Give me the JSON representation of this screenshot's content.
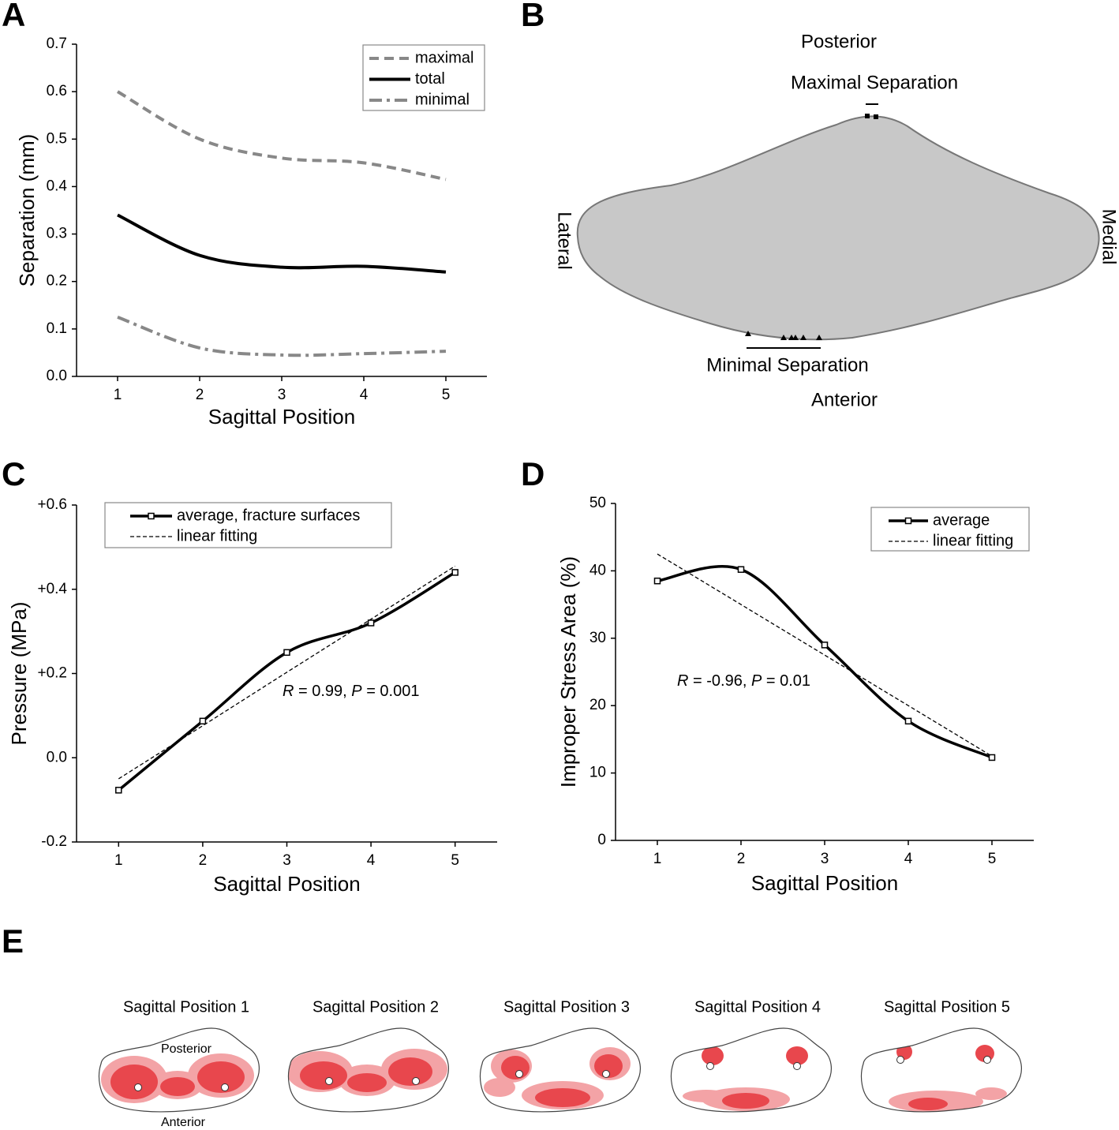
{
  "panel_labels": [
    "A",
    "B",
    "C",
    "D",
    "E"
  ],
  "chart_data": [
    {
      "type": "line",
      "x_label": "Sagittal Position",
      "y_label": "Separation (mm)",
      "x": [
        1,
        2,
        3,
        4,
        5
      ],
      "xlim": [
        0.5,
        5.5
      ],
      "xticks": [
        1,
        2,
        3,
        4,
        5
      ],
      "ylim": [
        0,
        0.7
      ],
      "yticks": [
        {
          "value": 0,
          "label": "0.0"
        },
        0.1,
        0.2,
        0.3,
        0.4,
        0.5,
        0.6,
        0.7
      ],
      "legend": "upper right",
      "series": [
        {
          "name": "maximal",
          "color": "#888888",
          "style": "dashed",
          "smooth": true,
          "values": [
            0.6,
            0.5,
            0.46,
            0.45,
            0.415
          ]
        },
        {
          "name": "total",
          "color": "#000000",
          "style": "solid",
          "smooth": true,
          "values": [
            0.34,
            0.255,
            0.23,
            0.232,
            0.22
          ]
        },
        {
          "name": "minimal",
          "color": "#888888",
          "style": "dashdot",
          "smooth": true,
          "values": [
            0.125,
            0.06,
            0.045,
            0.048,
            0.053
          ]
        }
      ]
    },
    {
      "type": "line",
      "x_label": "Sagittal Position",
      "y_label": "Pressure (MPa)",
      "x": [
        1,
        2,
        3,
        4,
        5
      ],
      "xlim": [
        0.5,
        5.5
      ],
      "xticks": [
        1,
        2,
        3,
        4,
        5
      ],
      "ylim": [
        -0.2,
        0.6
      ],
      "yticks": [
        -0.2,
        {
          "value": 0,
          "label": "0.0"
        },
        {
          "value": 0.2,
          "label": "+0.2"
        },
        {
          "value": 0.4,
          "label": "+0.4"
        },
        {
          "value": 0.6,
          "label": "+0.6"
        }
      ],
      "legend": "upper left",
      "annotation": [
        "R",
        " = 0.99, ",
        "P",
        " = 0.001"
      ],
      "series": [
        {
          "name": "average, fracture surfaces",
          "color": "#000000",
          "style": "solid",
          "smooth": true,
          "marker": "square",
          "values": [
            -0.077,
            0.087,
            0.25,
            0.32,
            0.44
          ]
        },
        {
          "name": "linear fitting",
          "color": "#000000",
          "style": "fine-dashed",
          "smooth": false,
          "values": [
            -0.05,
            0.076,
            0.203,
            0.329,
            0.455
          ]
        }
      ]
    },
    {
      "type": "line",
      "x_label": "Sagittal Position",
      "y_label": "Improper Stress Area (%)",
      "x": [
        1,
        2,
        3,
        4,
        5
      ],
      "xlim": [
        0.5,
        5.5
      ],
      "xticks": [
        1,
        2,
        3,
        4,
        5
      ],
      "ylim": [
        0,
        50
      ],
      "yticks": [
        0,
        10,
        20,
        30,
        40,
        50
      ],
      "legend": "upper right",
      "annotation": [
        "R",
        " = -0.96, ",
        "P",
        " = 0.01"
      ],
      "series": [
        {
          "name": "average",
          "color": "#000000",
          "style": "solid",
          "smooth": true,
          "marker": "square",
          "values": [
            38.5,
            40.2,
            29,
            17.7,
            12.3
          ]
        },
        {
          "name": "linear fitting",
          "color": "#000000",
          "style": "fine-dashed",
          "smooth": false,
          "values": [
            42.5,
            35,
            27.5,
            20,
            12.5
          ]
        }
      ]
    }
  ],
  "diagram_b": {
    "posterior": "Posterior",
    "maximal": "Maximal Separation",
    "lateral": "Lateral",
    "medial": "Medial",
    "minimal": "Minimal Separation",
    "anterior": "Anterior"
  },
  "diagram_e": {
    "titles": [
      "Sagittal Position 1",
      "Sagittal Position 2",
      "Sagittal Position 3",
      "Sagittal Position 4",
      "Sagittal Position 5"
    ],
    "posterior": "Posterior",
    "anterior": "Anterior"
  }
}
